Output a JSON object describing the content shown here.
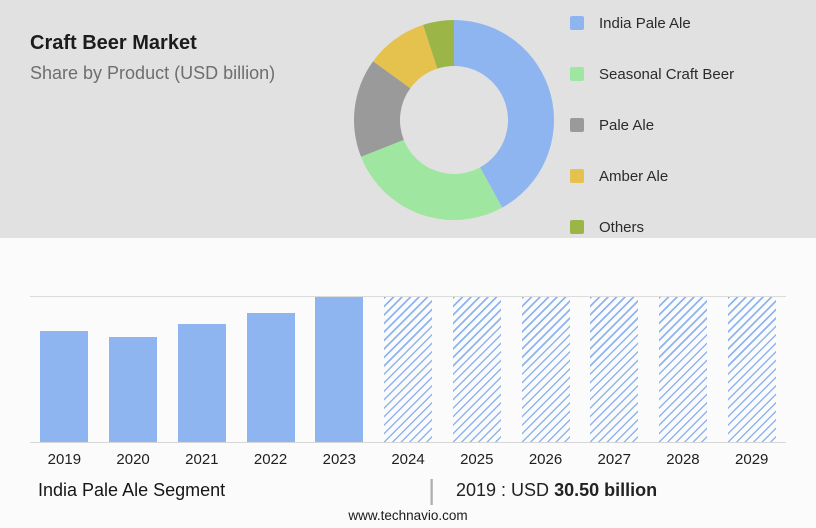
{
  "header": {
    "title": "Craft Beer Market",
    "subtitle": "Share by Product (USD billion)"
  },
  "bottom": {
    "segment_label": "India Pale Ale Segment",
    "separator": "|",
    "value_prefix": "2019 : USD ",
    "value_bold": "30.50 billion"
  },
  "footer": {
    "url": "www.technavio.com"
  },
  "colors": {
    "blue": "#8fb5f0",
    "green": "#9fe6a0",
    "gray": "#9a9a9a",
    "yellow": "#e5c14d",
    "olive": "#9cb547",
    "top_background": "#e1e1e1"
  },
  "chart_data": [
    {
      "type": "pie",
      "donut": true,
      "title": "Craft Beer Market — Share by Product (USD billion)",
      "labels": [
        "India Pale Ale",
        "Seasonal Craft Beer",
        "Pale Ale",
        "Amber Ale",
        "Others"
      ],
      "values": [
        42,
        27,
        16,
        10,
        5
      ],
      "colors": [
        "#8fb5f0",
        "#9fe6a0",
        "#9a9a9a",
        "#e5c14d",
        "#9cb547"
      ],
      "legend_position": "right",
      "note": "share percentages estimated from arc angles"
    },
    {
      "type": "bar",
      "categories": [
        "2019",
        "2020",
        "2021",
        "2022",
        "2023",
        "2024",
        "2025",
        "2026",
        "2027",
        "2028",
        "2029"
      ],
      "values": [
        30.5,
        28.9,
        32.5,
        35.5,
        40.0,
        40.0,
        40.0,
        40.0,
        40.0,
        40.0,
        40.0
      ],
      "forecast_start_index": 5,
      "bar_color": "#8fb5f0",
      "ylim": [
        0,
        44
      ],
      "gridlines": [
        40
      ],
      "xlabel": "",
      "ylabel": "USD billion",
      "known_value": {
        "year": "2019",
        "value_usd_billion": 30.5
      },
      "note": "2024-2029 are hatched forecast bars of equal display height; y-values estimated from 2019 = 30.50"
    }
  ]
}
